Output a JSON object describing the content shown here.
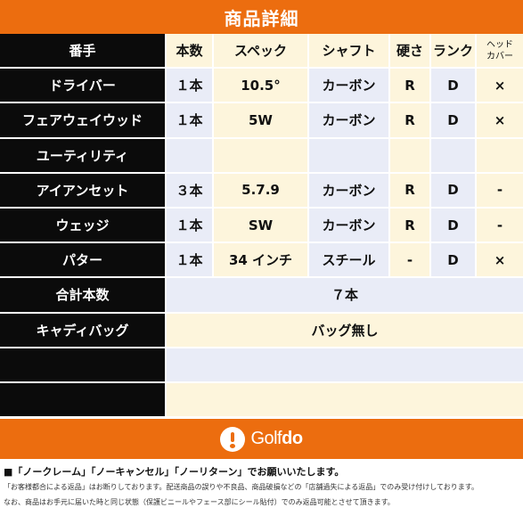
{
  "header": {
    "title": "商品詳細"
  },
  "table": {
    "columns": [
      "番手",
      "本数",
      "スペック",
      "シャフト",
      "硬さ",
      "ランク",
      "ヘッド\nカバー"
    ],
    "rows": [
      [
        "ドライバー",
        "１本",
        "10.5°",
        "カーボン",
        "R",
        "D",
        "×"
      ],
      [
        "フェアウェイウッド",
        "１本",
        "5W",
        "カーボン",
        "R",
        "D",
        "×"
      ],
      [
        "ユーティリティ",
        "",
        "",
        "",
        "",
        "",
        ""
      ],
      [
        "アイアンセット",
        "３本",
        "5.7.9",
        "カーボン",
        "R",
        "D",
        "-"
      ],
      [
        "ウェッジ",
        "１本",
        "SW",
        "カーボン",
        "R",
        "D",
        "-"
      ],
      [
        "パター",
        "１本",
        "34 インチ",
        "スチール",
        "-",
        "D",
        "×"
      ]
    ],
    "summary": [
      {
        "label": "合計本数",
        "value": "７本"
      },
      {
        "label": "キャディバッグ",
        "value": "バッグ無し"
      },
      {
        "label": "",
        "value": ""
      },
      {
        "label": "",
        "value": ""
      }
    ]
  },
  "footer": {
    "logo_thin": "Golf",
    "logo_bold": "do"
  },
  "notes": {
    "line1": "■「ノークレーム」「ノーキャンセル」「ノーリターン」でお願いいたします。",
    "line2": "「お客様都合による返品」はお断りしております。配送商品の誤りや不良品、商品破損などの「店舗過失による返品」でのみ受け付けしております。",
    "line3": "なお、商品はお手元に届いた時と同じ状態（保護ビニールやフェース部にシール貼付）でのみ返品可能とさせて頂きます。"
  },
  "colors": {
    "accent": "#ec6d0f",
    "rowhead": "#0b0b0b",
    "header_bg": "#fdf5dc",
    "cell_a": "#e9ecf7",
    "cell_b": "#fdf5dc"
  }
}
